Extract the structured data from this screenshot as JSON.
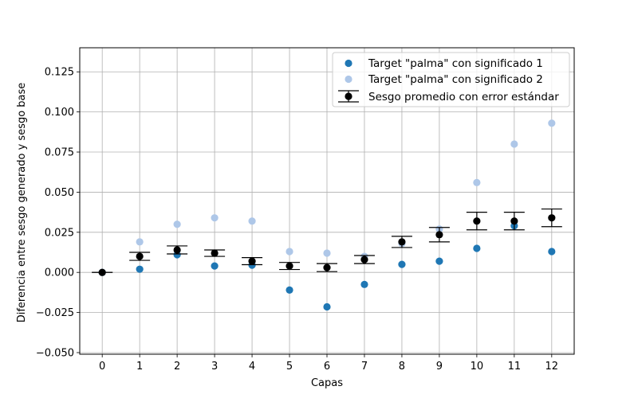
{
  "chart_data": {
    "type": "scatter",
    "xlabel": "Capas",
    "ylabel": "Diferencia entre sesgo generado y sesgo base",
    "xlim": [
      -0.6,
      12.6
    ],
    "ylim": [
      -0.051,
      0.14
    ],
    "x_ticks": [
      0,
      1,
      2,
      3,
      4,
      5,
      6,
      7,
      8,
      9,
      10,
      11,
      12
    ],
    "y_ticks": [
      -0.05,
      -0.025,
      0.0,
      0.025,
      0.05,
      0.075,
      0.1,
      0.125
    ],
    "y_tick_labels": [
      "−0.050",
      "−0.025",
      "0.000",
      "0.025",
      "0.050",
      "0.075",
      "0.100",
      "0.125"
    ],
    "grid": true,
    "legend_position": "top-right",
    "series": [
      {
        "name": "Target \"palma\" con significado 1",
        "kind": "scatter",
        "color": "#1f77b4",
        "x": [
          0,
          1,
          2,
          3,
          4,
          5,
          6,
          7,
          8,
          9,
          10,
          11,
          12
        ],
        "y": [
          0.0,
          0.002,
          0.011,
          0.004,
          0.0045,
          -0.011,
          -0.0215,
          -0.0075,
          0.005,
          0.007,
          0.015,
          0.029,
          0.013
        ]
      },
      {
        "name": "Target \"palma\" con significado 2",
        "kind": "scatter",
        "color": "#aec7e8",
        "x": [
          0,
          1,
          2,
          3,
          4,
          5,
          6,
          7,
          8,
          9,
          10,
          11,
          12
        ],
        "y": [
          0.0,
          0.019,
          0.03,
          0.034,
          0.032,
          0.013,
          0.012,
          0.01,
          0.018,
          0.027,
          0.056,
          0.08,
          0.093
        ]
      },
      {
        "name": "Sesgo promedio con error estándar",
        "kind": "errorbar",
        "color": "#000000",
        "x": [
          0,
          1,
          2,
          3,
          4,
          5,
          6,
          7,
          8,
          9,
          10,
          11,
          12
        ],
        "y": [
          0.0,
          0.01,
          0.014,
          0.012,
          0.007,
          0.004,
          0.003,
          0.008,
          0.019,
          0.0235,
          0.032,
          0.032,
          0.034
        ],
        "err": [
          0.0,
          0.0025,
          0.0025,
          0.002,
          0.0022,
          0.0022,
          0.0025,
          0.0025,
          0.0035,
          0.0045,
          0.0055,
          0.0055,
          0.0055
        ]
      }
    ]
  }
}
